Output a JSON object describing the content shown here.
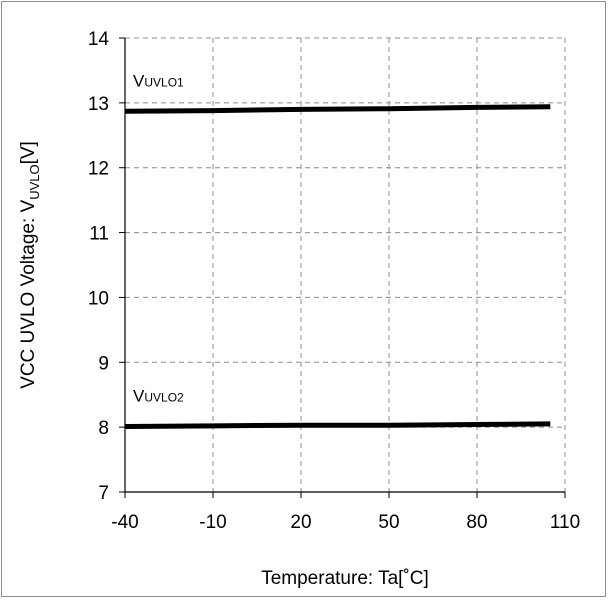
{
  "chart_data": {
    "type": "line",
    "title": "",
    "xlabel": "Temperature: Ta[˚C]",
    "ylabel_main": "VCC UVLO Voltage: V",
    "ylabel_sub": "UVLO",
    "ylabel_unit": "[V]",
    "xlim": [
      -40,
      110
    ],
    "ylim": [
      7,
      14
    ],
    "xticks": [
      "-40",
      "-10",
      "20",
      "50",
      "80",
      "110"
    ],
    "yticks": [
      "7",
      "8",
      "9",
      "10",
      "11",
      "12",
      "13",
      "14"
    ],
    "grid": true,
    "series": [
      {
        "label_main": "V",
        "label_sub": "UVLO1",
        "color": "#000000",
        "x": [
          -40,
          -10,
          20,
          50,
          80,
          105
        ],
        "y": [
          12.87,
          12.88,
          12.9,
          12.91,
          12.93,
          12.94
        ]
      },
      {
        "label_main": "V",
        "label_sub": "UVLO2",
        "color": "#000000",
        "x": [
          -40,
          -10,
          20,
          50,
          80,
          105
        ],
        "y": [
          8.01,
          8.02,
          8.03,
          8.03,
          8.04,
          8.05
        ]
      }
    ]
  }
}
